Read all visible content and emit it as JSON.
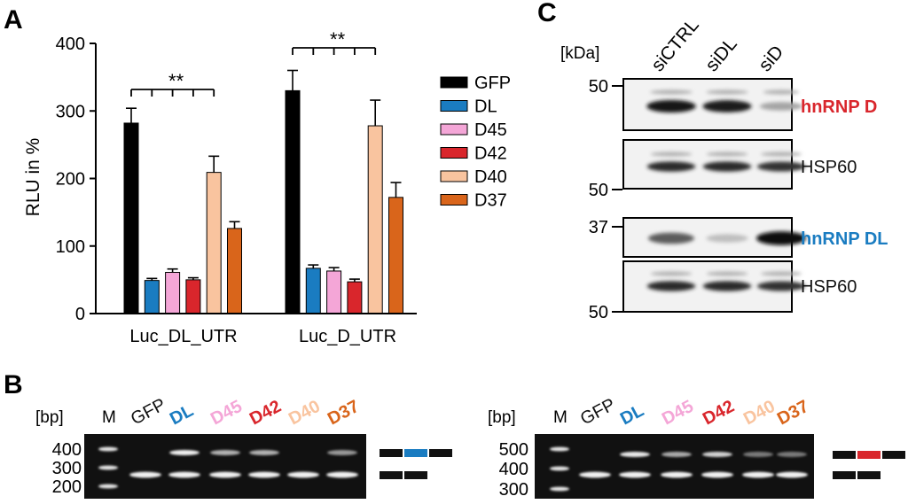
{
  "panels": {
    "a": "A",
    "b": "B",
    "c": "C"
  },
  "chart_data": {
    "type": "bar",
    "ylabel": "RLU in %",
    "xlabel": "",
    "ylim": [
      0,
      400
    ],
    "yticks": [
      "0",
      "100",
      "200",
      "300",
      "400"
    ],
    "categories": [
      "Luc_DL_UTR",
      "Luc_D_UTR"
    ],
    "series": [
      {
        "name": "GFP",
        "color": "#000000",
        "values": [
          282,
          330
        ],
        "errors": [
          22,
          30
        ]
      },
      {
        "name": "DL",
        "color": "#1a7cc1",
        "values": [
          49,
          67
        ],
        "errors": [
          3,
          5
        ]
      },
      {
        "name": "D45",
        "color": "#f4a6d7",
        "values": [
          61,
          63
        ],
        "errors": [
          5,
          5
        ]
      },
      {
        "name": "D42",
        "color": "#d9262c",
        "values": [
          50,
          47
        ],
        "errors": [
          3,
          4
        ]
      },
      {
        "name": "D40",
        "color": "#f9c49f",
        "values": [
          209,
          278
        ],
        "errors": [
          24,
          38
        ]
      },
      {
        "name": "D37",
        "color": "#d9651b",
        "values": [
          126,
          172
        ],
        "errors": [
          10,
          22
        ]
      }
    ],
    "significance": [
      "**",
      "**"
    ],
    "legend_position": "right"
  },
  "western_blot": {
    "unit_label": "[kDa]",
    "lanes": [
      "siCTRL",
      "siDL",
      "siD"
    ],
    "markers": [
      "50",
      "50",
      "37",
      "50"
    ],
    "rows": [
      {
        "label": "hnRNP D",
        "color": "#d9262c",
        "intensity": [
          0.95,
          0.9,
          0.25
        ]
      },
      {
        "label": "HSP60",
        "color": "#111111",
        "intensity": [
          0.85,
          0.85,
          0.8
        ]
      },
      {
        "label": "hnRNP DL",
        "color": "#1a7cc1",
        "intensity": [
          0.6,
          0.12,
          1.0
        ]
      },
      {
        "label": "HSP60",
        "color": "#111111",
        "intensity": [
          0.85,
          0.85,
          0.8
        ]
      }
    ]
  },
  "gels": [
    {
      "unit_label": "[bp]",
      "marker_label": "M",
      "size_labels": [
        "400",
        "300",
        "200"
      ],
      "lanes": [
        {
          "name": "GFP",
          "color": "#111111"
        },
        {
          "name": "DL",
          "color": "#1a7cc1"
        },
        {
          "name": "D45",
          "color": "#f4a6d7"
        },
        {
          "name": "D42",
          "color": "#d9262c"
        },
        {
          "name": "D40",
          "color": "#f9c49f"
        },
        {
          "name": "D37",
          "color": "#d9651b"
        }
      ],
      "exon_color": "#1a7cc1"
    },
    {
      "unit_label": "[bp]",
      "marker_label": "M",
      "size_labels": [
        "500",
        "400",
        "300"
      ],
      "lanes": [
        {
          "name": "GFP",
          "color": "#111111"
        },
        {
          "name": "DL",
          "color": "#1a7cc1"
        },
        {
          "name": "D45",
          "color": "#f4a6d7"
        },
        {
          "name": "D42",
          "color": "#d9262c"
        },
        {
          "name": "D40",
          "color": "#f9c49f"
        },
        {
          "name": "D37",
          "color": "#d9651b"
        }
      ],
      "exon_color": "#d9262c"
    }
  ]
}
